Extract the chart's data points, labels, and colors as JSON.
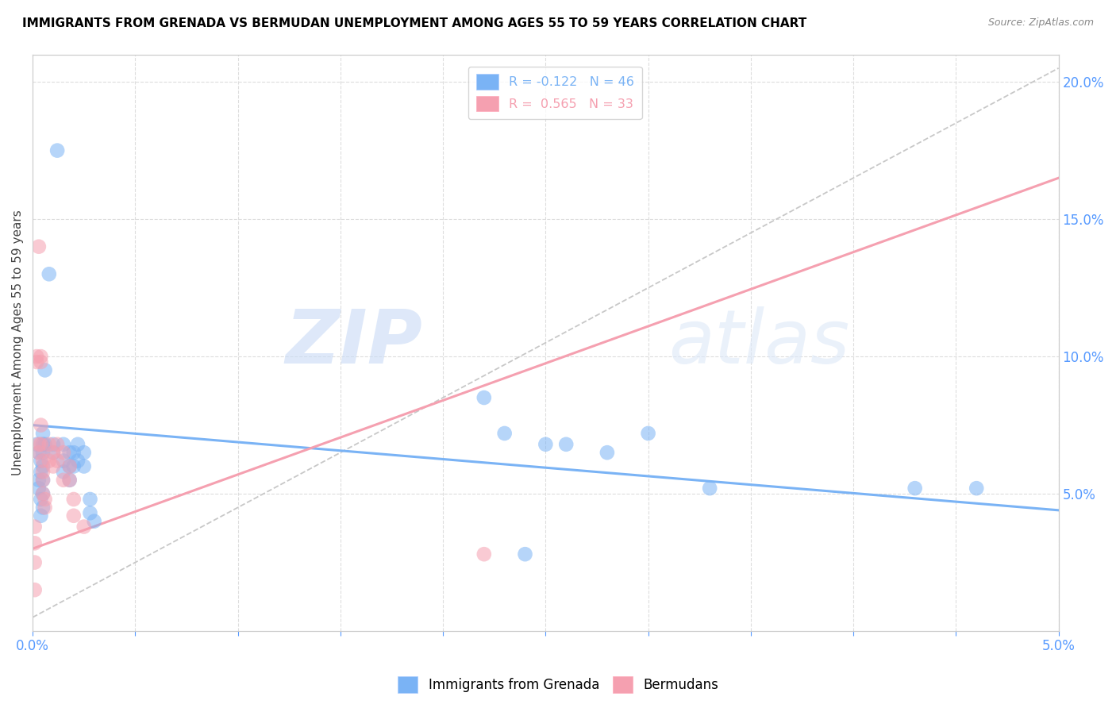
{
  "title": "IMMIGRANTS FROM GRENADA VS BERMUDAN UNEMPLOYMENT AMONG AGES 55 TO 59 YEARS CORRELATION CHART",
  "source": "Source: ZipAtlas.com",
  "ylabel": "Unemployment Among Ages 55 to 59 years",
  "xlim": [
    0.0,
    0.05
  ],
  "ylim": [
    0.0,
    0.21
  ],
  "yticks_right": [
    0.05,
    0.1,
    0.15,
    0.2
  ],
  "blue_color": "#7ab3f5",
  "pink_color": "#f5a0b0",
  "blue_scatter": [
    [
      0.0002,
      0.068
    ],
    [
      0.0003,
      0.065
    ],
    [
      0.0003,
      0.055
    ],
    [
      0.0003,
      0.052
    ],
    [
      0.0004,
      0.062
    ],
    [
      0.0004,
      0.058
    ],
    [
      0.0004,
      0.048
    ],
    [
      0.0004,
      0.042
    ],
    [
      0.0005,
      0.072
    ],
    [
      0.0005,
      0.068
    ],
    [
      0.0005,
      0.065
    ],
    [
      0.0005,
      0.06
    ],
    [
      0.0005,
      0.055
    ],
    [
      0.0005,
      0.05
    ],
    [
      0.0005,
      0.045
    ],
    [
      0.0006,
      0.095
    ],
    [
      0.0006,
      0.068
    ],
    [
      0.0008,
      0.13
    ],
    [
      0.001,
      0.068
    ],
    [
      0.001,
      0.065
    ],
    [
      0.0012,
      0.175
    ],
    [
      0.0015,
      0.068
    ],
    [
      0.0015,
      0.062
    ],
    [
      0.0015,
      0.058
    ],
    [
      0.0018,
      0.065
    ],
    [
      0.0018,
      0.06
    ],
    [
      0.0018,
      0.055
    ],
    [
      0.002,
      0.065
    ],
    [
      0.002,
      0.06
    ],
    [
      0.0022,
      0.068
    ],
    [
      0.0022,
      0.062
    ],
    [
      0.0025,
      0.065
    ],
    [
      0.0025,
      0.06
    ],
    [
      0.0028,
      0.048
    ],
    [
      0.0028,
      0.043
    ],
    [
      0.003,
      0.04
    ],
    [
      0.022,
      0.085
    ],
    [
      0.023,
      0.072
    ],
    [
      0.025,
      0.068
    ],
    [
      0.026,
      0.068
    ],
    [
      0.028,
      0.065
    ],
    [
      0.03,
      0.072
    ],
    [
      0.033,
      0.052
    ],
    [
      0.043,
      0.052
    ],
    [
      0.046,
      0.052
    ],
    [
      0.024,
      0.028
    ]
  ],
  "pink_scatter": [
    [
      0.0001,
      0.038
    ],
    [
      0.0001,
      0.032
    ],
    [
      0.0001,
      0.025
    ],
    [
      0.0001,
      0.015
    ],
    [
      0.0002,
      0.1
    ],
    [
      0.0002,
      0.098
    ],
    [
      0.0003,
      0.14
    ],
    [
      0.0003,
      0.068
    ],
    [
      0.0003,
      0.065
    ],
    [
      0.0004,
      0.1
    ],
    [
      0.0004,
      0.098
    ],
    [
      0.0004,
      0.075
    ],
    [
      0.0004,
      0.068
    ],
    [
      0.0005,
      0.062
    ],
    [
      0.0005,
      0.058
    ],
    [
      0.0005,
      0.055
    ],
    [
      0.0005,
      0.05
    ],
    [
      0.0006,
      0.048
    ],
    [
      0.0006,
      0.045
    ],
    [
      0.0008,
      0.068
    ],
    [
      0.0008,
      0.062
    ],
    [
      0.001,
      0.065
    ],
    [
      0.001,
      0.06
    ],
    [
      0.0012,
      0.068
    ],
    [
      0.0012,
      0.062
    ],
    [
      0.0015,
      0.065
    ],
    [
      0.0015,
      0.055
    ],
    [
      0.0018,
      0.06
    ],
    [
      0.0018,
      0.055
    ],
    [
      0.002,
      0.048
    ],
    [
      0.002,
      0.042
    ],
    [
      0.0025,
      0.038
    ],
    [
      0.022,
      0.028
    ]
  ],
  "blue_line": [
    [
      0.0,
      0.075
    ],
    [
      0.05,
      0.044
    ]
  ],
  "pink_line": [
    [
      0.0,
      0.03
    ],
    [
      0.05,
      0.165
    ]
  ],
  "gray_dash_line": [
    [
      0.0,
      0.005
    ],
    [
      0.05,
      0.205
    ]
  ],
  "legend1_label": "R = -0.122   N = 46",
  "legend2_label": "R =  0.565   N = 33",
  "watermark_zip": "ZIP",
  "watermark_atlas": "atlas",
  "legend_bottom": [
    "Immigrants from Grenada",
    "Bermudans"
  ]
}
